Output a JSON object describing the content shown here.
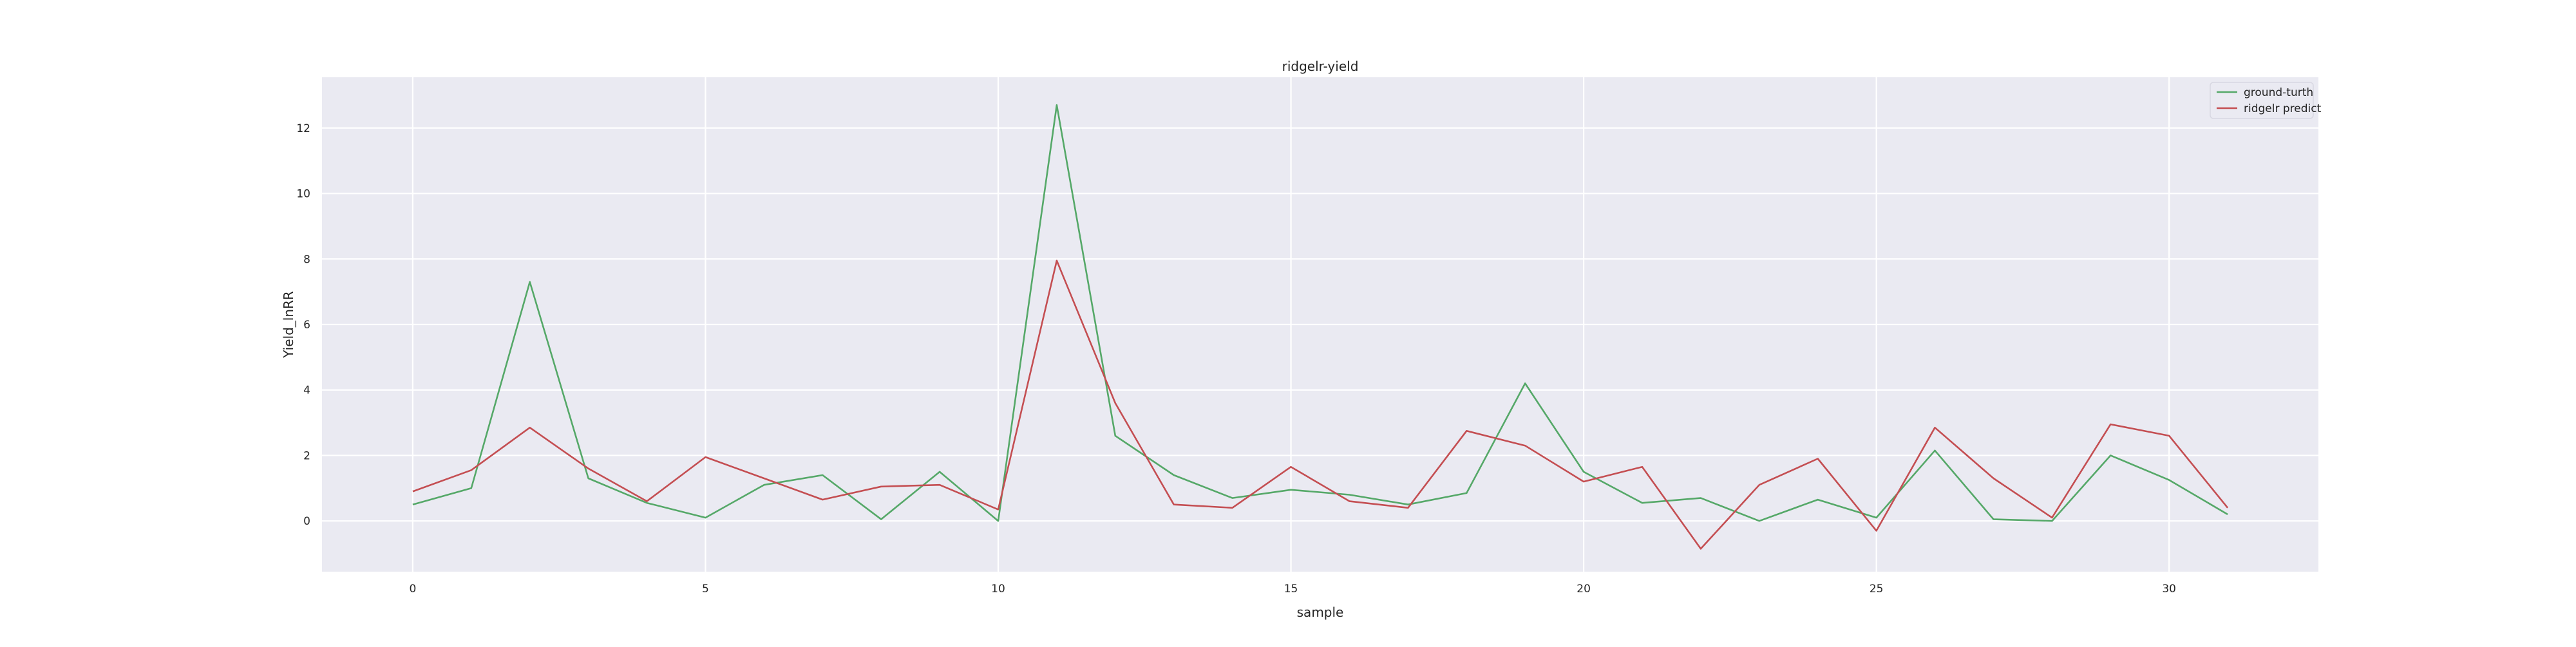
{
  "chart_data": {
    "type": "line",
    "title": "ridgelr-yield",
    "xlabel": "sample",
    "ylabel": "Yield_lnRR",
    "x": [
      0,
      1,
      2,
      3,
      4,
      5,
      6,
      7,
      8,
      9,
      10,
      11,
      12,
      13,
      14,
      15,
      16,
      17,
      18,
      19,
      20,
      21,
      22,
      23,
      24,
      25,
      26,
      27,
      28,
      29,
      30,
      31
    ],
    "xlim": [
      -1.55,
      32.55
    ],
    "ylim": [
      -1.55,
      13.55
    ],
    "xticks": [
      0,
      5,
      10,
      15,
      20,
      25,
      30
    ],
    "yticks": [
      0,
      2,
      4,
      6,
      8,
      10,
      12
    ],
    "grid": true,
    "background_color": "#eaeaf2",
    "grid_color": "#ffffff",
    "legend_position": "top-right",
    "series": [
      {
        "name": "ground-turth",
        "color": "#55a868",
        "values": [
          0.5,
          1.0,
          7.3,
          1.3,
          0.55,
          0.1,
          1.1,
          1.4,
          0.05,
          1.5,
          0.0,
          12.7,
          2.6,
          1.4,
          0.7,
          0.95,
          0.8,
          0.5,
          0.85,
          4.2,
          1.5,
          0.55,
          0.7,
          0.0,
          0.65,
          0.1,
          2.15,
          0.05,
          0.0,
          2.0,
          1.25,
          0.2
        ]
      },
      {
        "name": "ridgelr predict",
        "color": "#c44e52",
        "values": [
          0.9,
          1.55,
          2.85,
          1.6,
          0.6,
          1.95,
          1.3,
          0.65,
          1.05,
          1.1,
          0.35,
          7.95,
          3.6,
          0.5,
          0.4,
          1.65,
          0.6,
          0.4,
          2.75,
          2.3,
          1.2,
          1.65,
          -0.85,
          1.1,
          1.9,
          -0.3,
          2.85,
          1.3,
          0.1,
          2.95,
          2.6,
          0.4
        ]
      }
    ]
  }
}
